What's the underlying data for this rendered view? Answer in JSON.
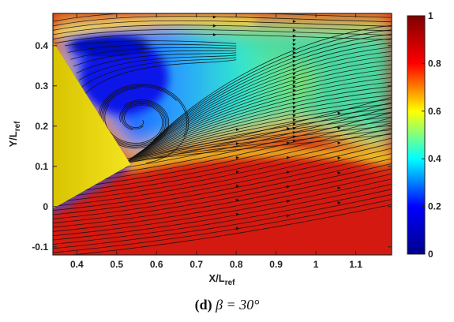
{
  "chart_data": {
    "type": "heatmap",
    "title": "",
    "caption_panel": "(d)",
    "caption_text": "β = 30°",
    "xlabel": "X/L",
    "xlabel_sub": "ref",
    "ylabel": "Y/L",
    "ylabel_sub": "ref",
    "xlim": [
      0.34,
      1.19
    ],
    "ylim": [
      -0.12,
      0.48
    ],
    "xticks": [
      0.4,
      0.5,
      0.6,
      0.7,
      0.8,
      0.9,
      1,
      1.1
    ],
    "xtick_labels": [
      "0.4",
      "0.5",
      "0.6",
      "0.7",
      "0.8",
      "0.9",
      "1",
      "1.1"
    ],
    "yticks": [
      -0.1,
      0,
      0.1,
      0.2,
      0.3,
      0.4
    ],
    "ytick_labels": [
      "-0.1",
      "0",
      "0.1",
      "0.2",
      "0.3",
      "0.4"
    ],
    "colorbar": {
      "range": [
        0,
        1
      ],
      "ticks": [
        0,
        0.2,
        0.4,
        0.6,
        0.8,
        1
      ],
      "tick_labels": [
        "0",
        "0.2",
        "0.4",
        "0.6",
        "0.8",
        "1"
      ],
      "colormap": "jet",
      "colors": [
        "#00008b",
        "#0000ff",
        "#00ffff",
        "#ffff00",
        "#ff0000",
        "#800000"
      ]
    },
    "body_polygon": [
      [
        0.34,
        0.41
      ],
      [
        0.535,
        0.105
      ],
      [
        0.34,
        -0.005
      ]
    ],
    "body_color": "#e8d400",
    "overlay": "streamlines",
    "streamline_color": "#111111",
    "grid": false
  }
}
